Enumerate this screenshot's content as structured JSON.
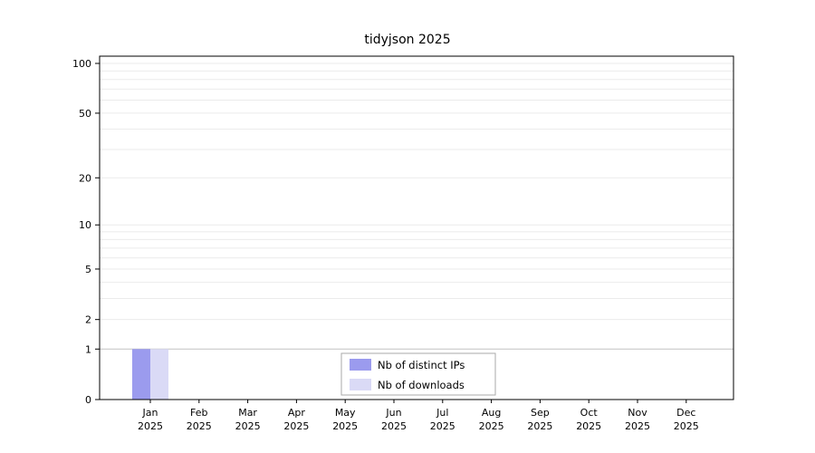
{
  "chart_data": {
    "type": "bar",
    "title": "tidyjson 2025",
    "categories": [
      "Jan",
      "Feb",
      "Mar",
      "Apr",
      "May",
      "Jun",
      "Jul",
      "Aug",
      "Sep",
      "Oct",
      "Nov",
      "Dec"
    ],
    "category_year": "2025",
    "series": [
      {
        "name": "Nb of distinct IPs",
        "color": "#9b9bee",
        "values": [
          1,
          0,
          0,
          0,
          0,
          0,
          0,
          0,
          0,
          0,
          0,
          0
        ]
      },
      {
        "name": "Nb of downloads",
        "color": "#dadaf6",
        "values": [
          1,
          0,
          0,
          0,
          0,
          0,
          0,
          0,
          0,
          0,
          0,
          0
        ]
      }
    ],
    "y_axis": {
      "ticks": [
        0,
        1,
        2,
        5,
        10,
        20,
        50,
        100
      ],
      "scale": "log10(value+1)",
      "minor_gridlines": [
        2,
        3,
        4,
        5,
        6,
        7,
        8,
        9,
        10,
        20,
        30,
        40,
        50,
        60,
        70,
        80,
        90,
        100
      ],
      "baseline_gridline": 1,
      "ylim": [
        0,
        100
      ]
    },
    "legend": {
      "position": "bottom-center",
      "entries": [
        "Nb of distinct IPs",
        "Nb of downloads"
      ]
    },
    "grid": "on",
    "colors": {
      "minor_grid": "#ebebeb",
      "baseline_grid": "#c4c4c4",
      "plot_border": "#000000",
      "legend_border": "#aaaaaa",
      "legend_bg": "#ffffff"
    }
  }
}
